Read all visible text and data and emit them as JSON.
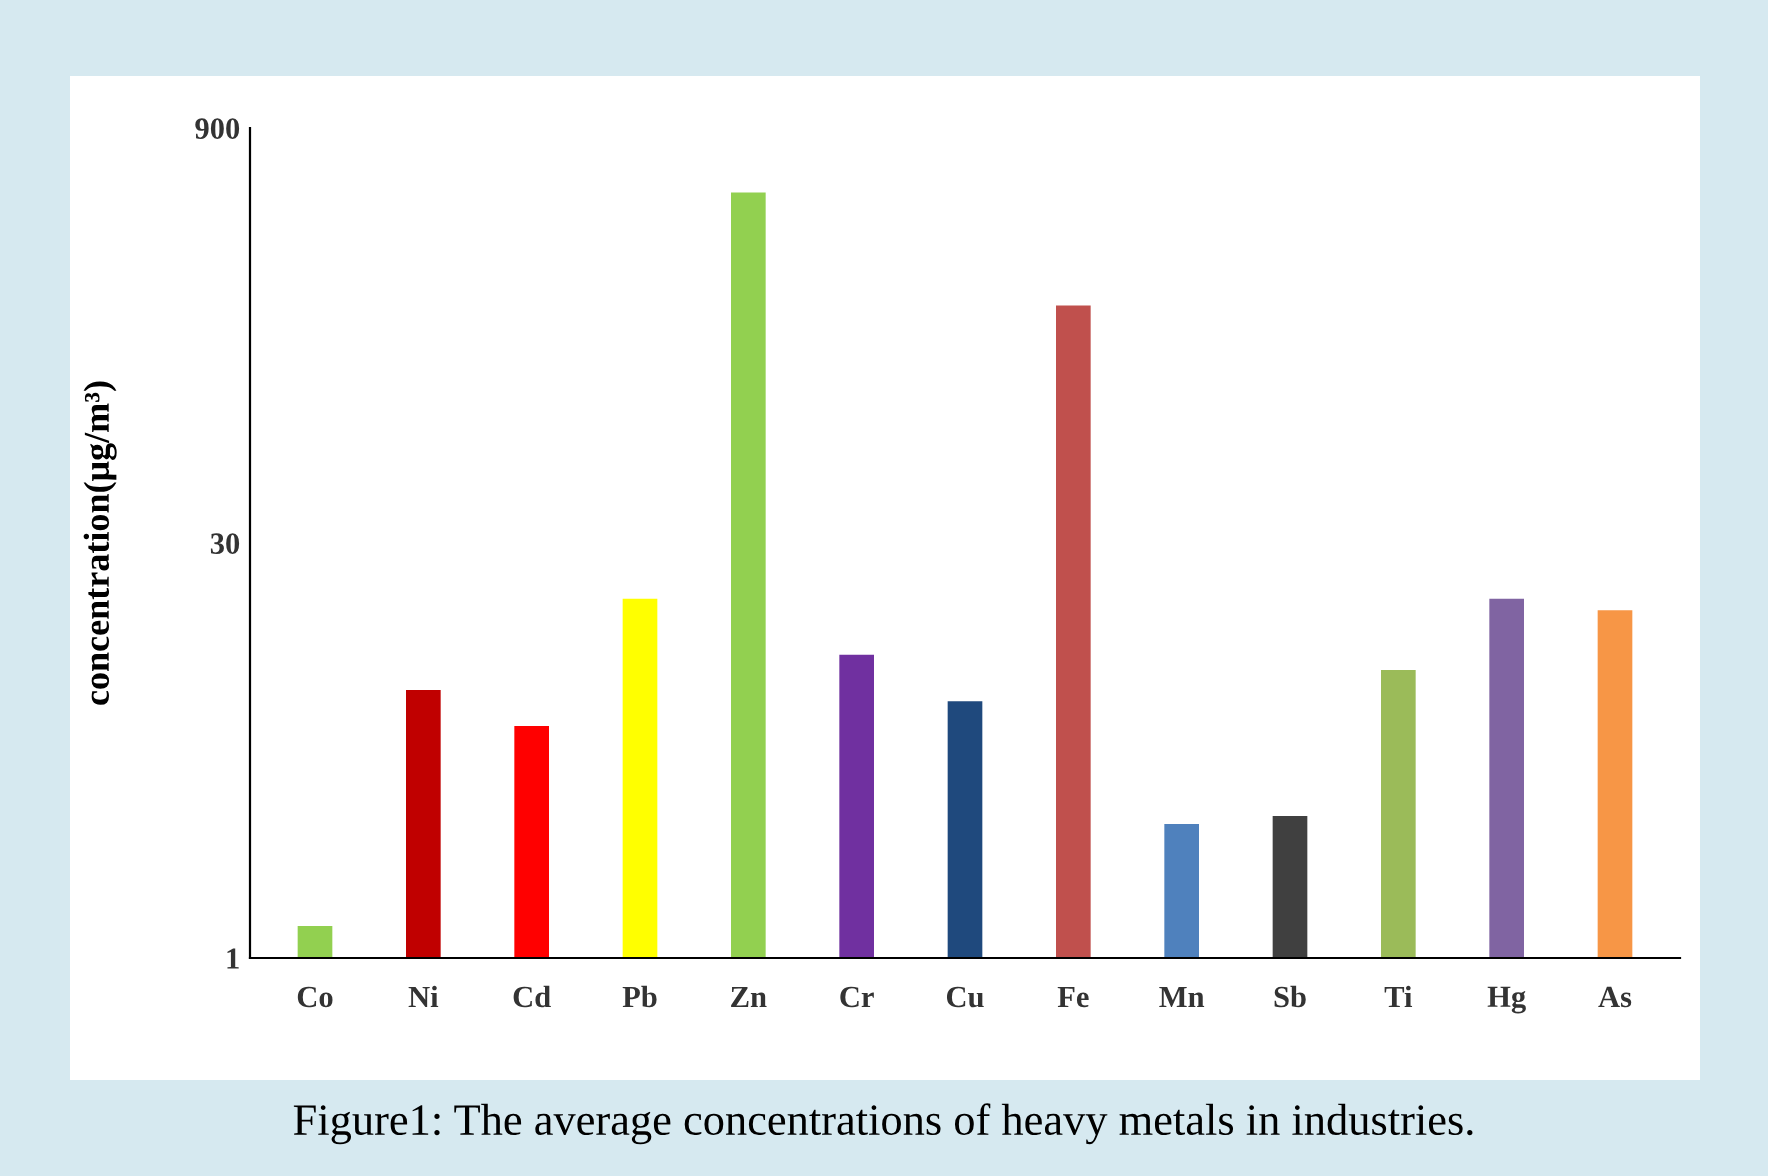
{
  "chart_data": {
    "type": "bar",
    "ylabel": "concentration(μg/m³)",
    "categories": [
      "Co",
      "Ni",
      "Cd",
      "Pb",
      "Zn",
      "Cr",
      "Cu",
      "Fe",
      "Mn",
      "Sb",
      "Ti",
      "Hg",
      "As"
    ],
    "values": [
      1.3,
      9,
      6.7,
      19,
      530,
      12,
      8.2,
      210,
      3,
      3.2,
      10.6,
      19,
      17.3
    ],
    "colors": [
      "#92d050",
      "#c00000",
      "#ff0000",
      "#ffff00",
      "#92d050",
      "#7030a0",
      "#1f497d",
      "#c0504d",
      "#4f81bd",
      "#404040",
      "#9bbb59",
      "#8064a2",
      "#f79646"
    ],
    "log": "y",
    "ylim": [
      1,
      900
    ],
    "yticks": [
      1,
      30,
      900
    ],
    "grid": false,
    "annotations": [
      "Figure1: The average concentrations of heavy metals in industries."
    ]
  }
}
